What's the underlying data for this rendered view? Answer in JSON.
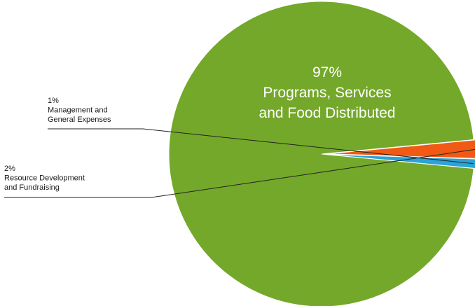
{
  "chart_data": {
    "type": "pie",
    "legend": "none",
    "slices": [
      {
        "name": "Programs, Services and Food Distributed",
        "value": 97,
        "percent_label": "97%",
        "label_lines": [
          "Programs, Services",
          "and Food Distributed"
        ],
        "color": "#74a82a"
      },
      {
        "name": "Resource Development and Fundraising",
        "value": 2,
        "percent_label": "2%",
        "label_lines": [
          "Resource Development",
          "and Fundraising"
        ],
        "color": "#f05a15"
      },
      {
        "name": "Management and General Expenses",
        "value": 1,
        "percent_label": "1%",
        "label_lines": [
          "Management and",
          "General Expenses"
        ],
        "color": "#2ba3d6"
      }
    ]
  }
}
